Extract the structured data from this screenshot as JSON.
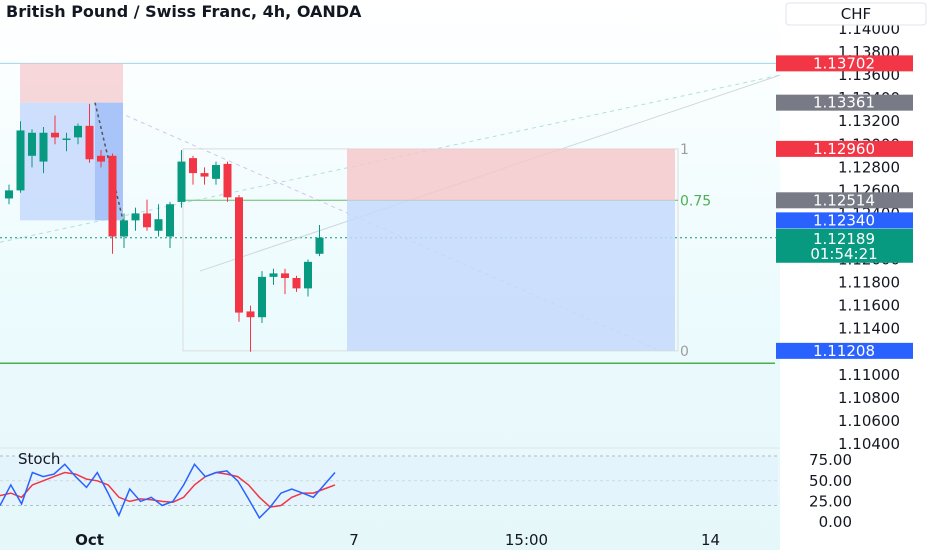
{
  "chart_data": {
    "type": "candlestick",
    "title": "British Pound / Swiss Franc, 4h, OANDA",
    "currency": "CHF",
    "y_ticks": [
      "1.14000",
      "1.13800",
      "1.13600",
      "1.13400",
      "1.13200",
      "1.13000",
      "1.12800",
      "1.12600",
      "1.12400",
      "1.12200",
      "1.12000",
      "1.11800",
      "1.11600",
      "1.11400",
      "1.11200",
      "1.11000",
      "1.10800",
      "1.10600",
      "1.10400"
    ],
    "ylim": [
      1.104,
      1.14
    ],
    "x_ticks": [
      {
        "label": "Oct",
        "index": 7
      },
      {
        "label": "7",
        "index": 30
      },
      {
        "label": "15:00",
        "index": 45
      },
      {
        "label": "14",
        "index": 61
      }
    ],
    "candles": [
      {
        "o": 1.1253,
        "h": 1.1265,
        "l": 1.1248,
        "c": 1.126
      },
      {
        "o": 1.126,
        "h": 1.132,
        "l": 1.1258,
        "c": 1.1312
      },
      {
        "o": 1.129,
        "h": 1.1313,
        "l": 1.128,
        "c": 1.131
      },
      {
        "o": 1.1285,
        "h": 1.1315,
        "l": 1.1275,
        "c": 1.131
      },
      {
        "o": 1.131,
        "h": 1.1325,
        "l": 1.13,
        "c": 1.1306
      },
      {
        "o": 1.1304,
        "h": 1.131,
        "l": 1.1294,
        "c": 1.1305
      },
      {
        "o": 1.1306,
        "h": 1.1318,
        "l": 1.13,
        "c": 1.1316
      },
      {
        "o": 1.1316,
        "h": 1.1335,
        "l": 1.1284,
        "c": 1.1287
      },
      {
        "o": 1.129,
        "h": 1.1295,
        "l": 1.128,
        "c": 1.1285
      },
      {
        "o": 1.129,
        "h": 1.1292,
        "l": 1.1205,
        "c": 1.122
      },
      {
        "o": 1.122,
        "h": 1.124,
        "l": 1.121,
        "c": 1.1234
      },
      {
        "o": 1.1234,
        "h": 1.1245,
        "l": 1.1225,
        "c": 1.124
      },
      {
        "o": 1.124,
        "h": 1.1252,
        "l": 1.1225,
        "c": 1.1228
      },
      {
        "o": 1.1225,
        "h": 1.1248,
        "l": 1.122,
        "c": 1.1235
      },
      {
        "o": 1.122,
        "h": 1.125,
        "l": 1.121,
        "c": 1.1248
      },
      {
        "o": 1.125,
        "h": 1.1295,
        "l": 1.1245,
        "c": 1.1285
      },
      {
        "o": 1.1288,
        "h": 1.129,
        "l": 1.1265,
        "c": 1.1275
      },
      {
        "o": 1.1275,
        "h": 1.128,
        "l": 1.1265,
        "c": 1.1272
      },
      {
        "o": 1.127,
        "h": 1.1285,
        "l": 1.1265,
        "c": 1.1282
      },
      {
        "o": 1.1283,
        "h": 1.1285,
        "l": 1.125,
        "c": 1.1254
      },
      {
        "o": 1.1254,
        "h": 1.1256,
        "l": 1.1146,
        "c": 1.1154
      },
      {
        "o": 1.1155,
        "h": 1.116,
        "l": 1.112,
        "c": 1.115
      },
      {
        "o": 1.115,
        "h": 1.119,
        "l": 1.1145,
        "c": 1.1185
      },
      {
        "o": 1.1185,
        "h": 1.1192,
        "l": 1.1178,
        "c": 1.1188
      },
      {
        "o": 1.1188,
        "h": 1.1192,
        "l": 1.117,
        "c": 1.1184
      },
      {
        "o": 1.1184,
        "h": 1.1186,
        "l": 1.1172,
        "c": 1.1175
      },
      {
        "o": 1.1175,
        "h": 1.12,
        "l": 1.1168,
        "c": 1.1198
      },
      {
        "o": 1.1205,
        "h": 1.123,
        "l": 1.1203,
        "c": 1.1219
      }
    ],
    "position": {
      "entry": 1.12514,
      "target": 1.1296,
      "stop": 1.11208
    },
    "price_tags": [
      {
        "label": "1.13702",
        "value": 1.13702,
        "color": "#f23645"
      },
      {
        "label": "1.13361",
        "value": 1.13361,
        "color": "#787b86"
      },
      {
        "label": "1.12960",
        "value": 1.1296,
        "color": "#f23645"
      },
      {
        "label": "1.12514",
        "value": 1.12514,
        "color": "#787b86"
      },
      {
        "label": "1.12340",
        "value": 1.1234,
        "color": "#2962ff"
      },
      {
        "label": "1.11208",
        "value": 1.11208,
        "color": "#2962ff"
      }
    ],
    "last_price": {
      "label": "1.12189",
      "countdown": "01:54:21",
      "value": 1.12189,
      "color": "#089981"
    },
    "fib_labels": [
      {
        "label": "1",
        "value": 1.1296
      },
      {
        "label": "0.75",
        "value": 1.12514
      },
      {
        "label": "0",
        "value": 1.11208
      }
    ],
    "stoch": {
      "title": "Stoch",
      "y_ticks": [
        "75.00",
        "50.00",
        "25.00",
        "0.00"
      ],
      "ylim": [
        0,
        80
      ],
      "k": [
        20,
        45,
        22,
        60,
        55,
        58,
        70,
        55,
        42,
        60,
        35,
        8,
        40,
        25,
        30,
        20,
        25,
        45,
        70,
        55,
        60,
        62,
        50,
        28,
        5,
        18,
        35,
        40,
        35,
        30,
        45,
        60
      ],
      "d": [
        32,
        35,
        30,
        45,
        50,
        55,
        60,
        58,
        52,
        50,
        45,
        30,
        25,
        28,
        27,
        25,
        24,
        30,
        45,
        55,
        60,
        58,
        55,
        45,
        30,
        18,
        20,
        30,
        35,
        35,
        40,
        45
      ]
    },
    "colors": {
      "up": "#089981",
      "down": "#f23645",
      "k_line": "#2962ff",
      "d_line": "#f23645"
    }
  }
}
